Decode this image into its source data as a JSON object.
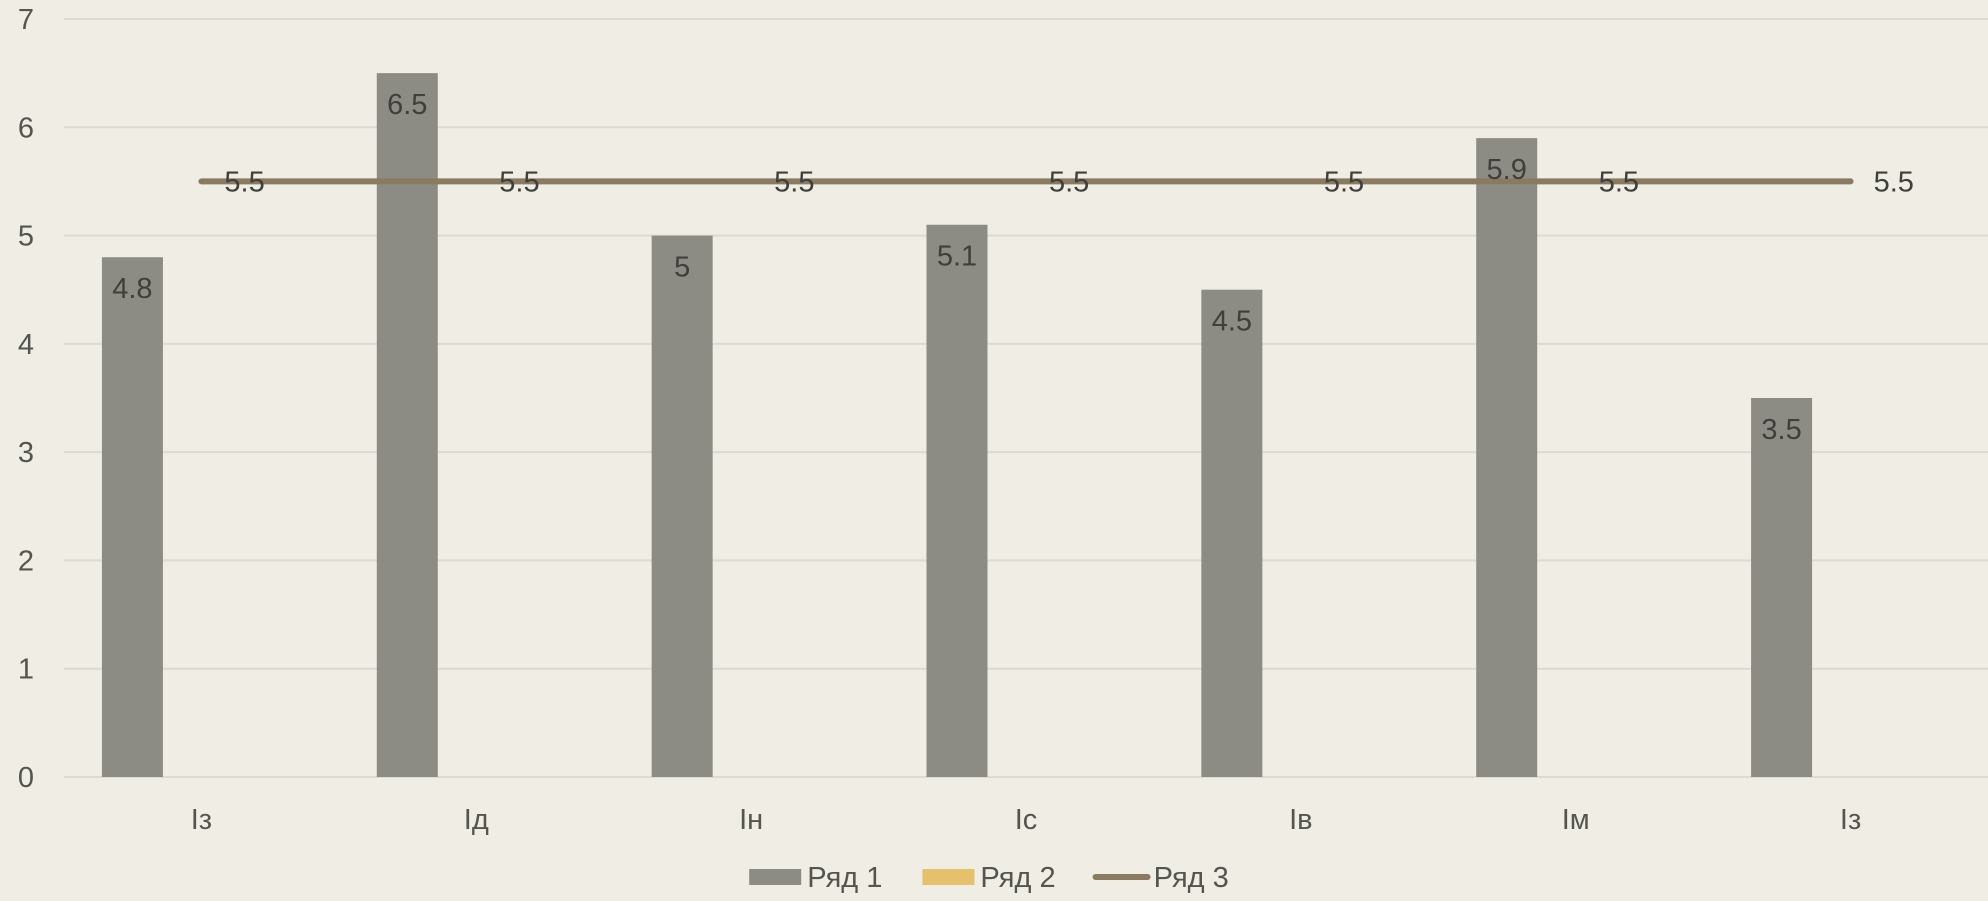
{
  "chart_data": {
    "type": "bar",
    "categories": [
      "Із",
      "Ід",
      "Ін",
      "Іс",
      "Ів",
      "Ім",
      "Із"
    ],
    "series": [
      {
        "name": "Ряд 1",
        "kind": "bar",
        "values": [
          4.8,
          6.5,
          5,
          5.1,
          4.5,
          5.9,
          3.5
        ],
        "color": "#8c8c84"
      },
      {
        "name": "Ряд 2",
        "kind": "bar",
        "values": [
          0,
          0,
          0,
          0,
          0,
          0,
          0
        ],
        "color": "#e6c16d"
      },
      {
        "name": "Ряд 3",
        "kind": "line",
        "values": [
          5.5,
          5.5,
          5.5,
          5.5,
          5.5,
          5.5,
          5.5
        ],
        "color": "#8a7a62"
      }
    ],
    "value_labels": {
      "Ряд 1": [
        "4.8",
        "6.5",
        "5",
        "5.1",
        "4.5",
        "5.9",
        "3.5"
      ],
      "Ряд 3": [
        "5.5",
        "5.5",
        "5.5",
        "5.5",
        "5.5",
        "5.5",
        "5.5"
      ]
    },
    "yticks": [
      "0",
      "1",
      "2",
      "3",
      "4",
      "5",
      "6",
      "7"
    ],
    "ylim": [
      0,
      7
    ],
    "grid": true,
    "legend_position": "bottom",
    "title": "",
    "xlabel": "",
    "ylabel": ""
  },
  "colors": {
    "background": "#efede4",
    "grid": "#dcdad1",
    "text": "#555550",
    "label": "#3f3f3c"
  }
}
